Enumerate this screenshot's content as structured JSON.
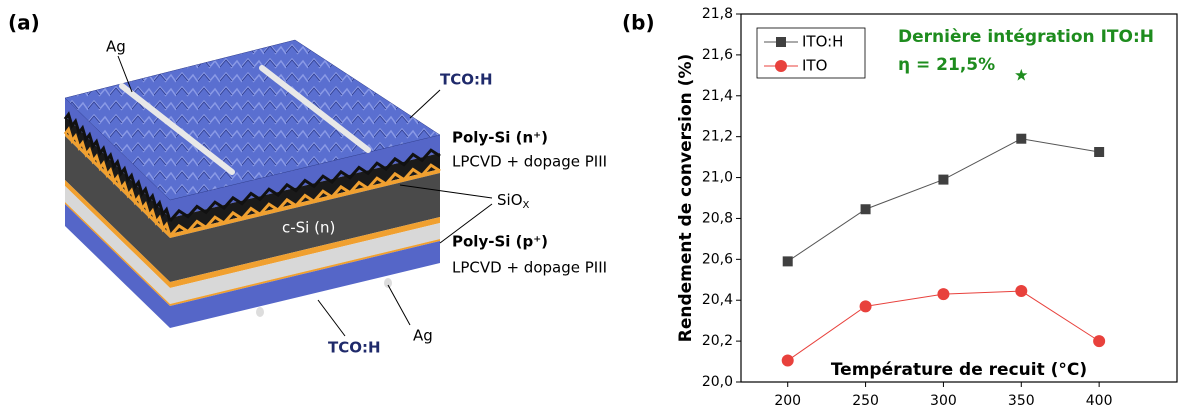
{
  "panel_a": {
    "label": "(a)",
    "ag_top": "Ag",
    "tco_top": "TCO:H",
    "poly_n": "Poly-Si (n⁺)",
    "process_n": "LPCVD + dopage PIII",
    "siox": {
      "base": "SiO",
      "sub": "X"
    },
    "csi": "c-Si (n)",
    "poly_p": "Poly-Si (p⁺)",
    "process_p": "LPCVD + dopage PIII",
    "tco_bottom": "TCO:H",
    "ag_bottom": "Ag"
  },
  "chart_data": {
    "type": "line",
    "panel_label": "(b)",
    "xlabel": "Température de recuit (°C)",
    "ylabel": "Rendement de conversion (%)",
    "x": [
      200,
      250,
      300,
      350,
      400
    ],
    "series": [
      {
        "name": "ITO:H",
        "color": "#404040",
        "line_color": "#555555",
        "marker": "square",
        "values": [
          20.59,
          20.845,
          20.99,
          21.19,
          21.125
        ]
      },
      {
        "name": "ITO",
        "color": "#e8413c",
        "line_color": "#e8413c",
        "marker": "circle",
        "values": [
          20.105,
          20.37,
          20.43,
          20.445,
          20.2
        ]
      }
    ],
    "xlim": [
      170,
      450
    ],
    "ylim": [
      20.0,
      21.8
    ],
    "xticks": [
      200,
      250,
      300,
      350,
      400
    ],
    "yticks": [
      {
        "value": 20.0,
        "label": "20,0"
      },
      {
        "value": 20.2,
        "label": "20,2"
      },
      {
        "value": 20.4,
        "label": "20,4"
      },
      {
        "value": 20.6,
        "label": "20,6"
      },
      {
        "value": 20.8,
        "label": "20,8"
      },
      {
        "value": 21.0,
        "label": "21,0"
      },
      {
        "value": 21.2,
        "label": "21,2"
      },
      {
        "value": 21.4,
        "label": "21,4"
      },
      {
        "value": 21.6,
        "label": "21,6"
      },
      {
        "value": 21.8,
        "label": "21,8"
      }
    ],
    "legend": "upper-left",
    "annotations": [
      "Dernière intégration ITO:H",
      "η = 21,5%"
    ],
    "annotation_color": "#1e8c1e",
    "highlight": {
      "x": 350,
      "y": 21.5,
      "color": "#1e8c1e"
    }
  }
}
